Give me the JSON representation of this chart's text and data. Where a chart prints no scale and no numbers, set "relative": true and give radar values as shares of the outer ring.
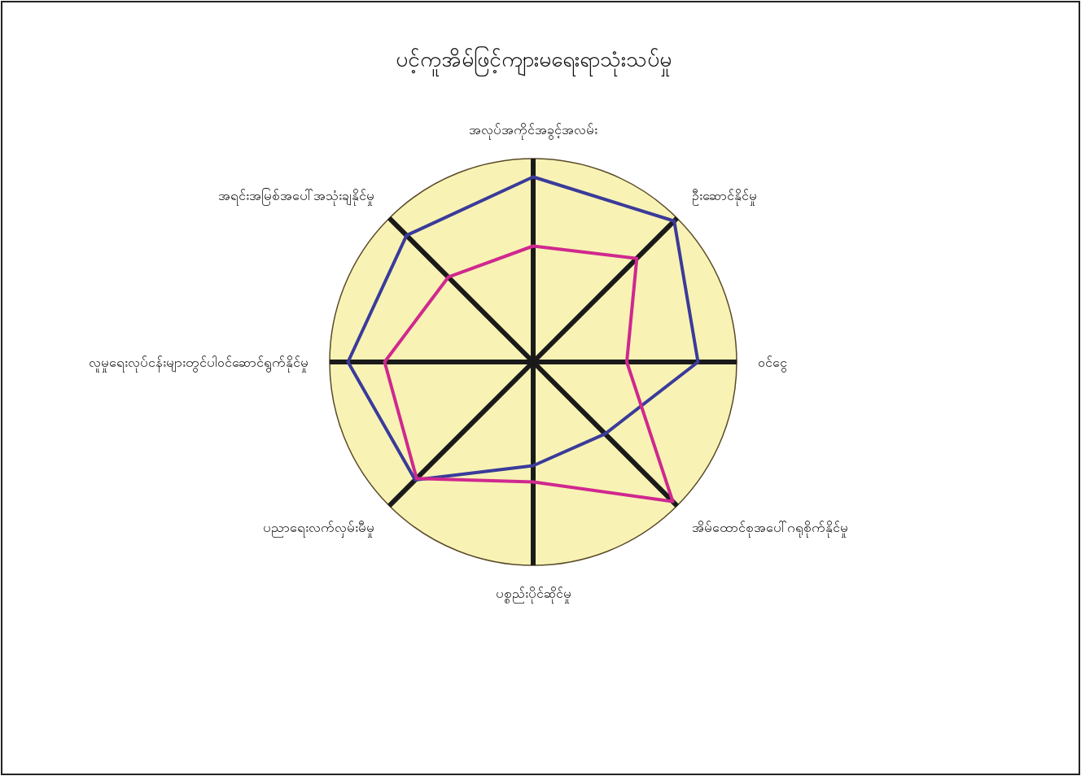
{
  "chart_data": {
    "type": "radar",
    "title": "ပင့်ကူအိမ်ဖြင့်ကျားမရေးရာသုံးသပ်မှု",
    "relative": true,
    "categories": [
      "အလုပ်အကိုင်အခွင့်အလမ်း",
      "ဦးဆောင်နိုင်မှု",
      "ဝင်ငွေ",
      "အိမ်ထောင်စုအပေါ်ဂရုစိုက်နိုင်မှု",
      "ပစ္စည်းပိုင်ဆိုင်မှု",
      "ပညာရေးလက်လှမ်းမီမှု",
      "လူမှုရေးလုပ်ငန်းများတွင်ပါဝင်ဆောင်ရွက်နိုင်မှု",
      "အရင်းအမြစ်အပေါ်အသုံးချနိုင်မှု"
    ],
    "series": [
      {
        "color": "#3b3b9a",
        "values": [
          0.91,
          0.98,
          0.81,
          0.5,
          0.51,
          0.82,
          0.91,
          0.88
        ]
      },
      {
        "color": "#d0288f",
        "values": [
          0.57,
          0.72,
          0.46,
          0.97,
          0.59,
          0.81,
          0.73,
          0.59
        ]
      }
    ]
  }
}
